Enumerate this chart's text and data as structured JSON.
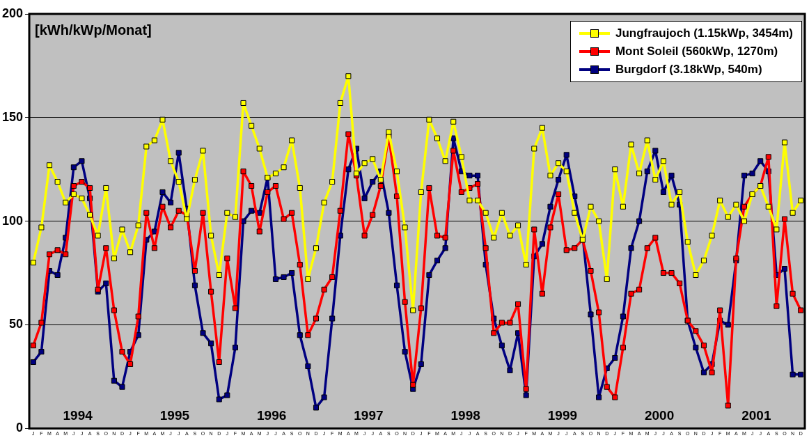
{
  "chart_data": {
    "type": "line",
    "ylabel": "[kWh/kWp/Monat]",
    "categories": [
      "J",
      "F",
      "M",
      "A",
      "M",
      "J",
      "J",
      "A",
      "S",
      "O",
      "N",
      "D",
      "J",
      "F",
      "M",
      "A",
      "M",
      "J",
      "J",
      "A",
      "S",
      "O",
      "N",
      "D",
      "J",
      "F",
      "M",
      "A",
      "M",
      "J",
      "J",
      "A",
      "S",
      "O",
      "N",
      "D",
      "J",
      "F",
      "M",
      "A",
      "M",
      "J",
      "J",
      "A",
      "S",
      "O",
      "N",
      "D",
      "J",
      "F",
      "M",
      "A",
      "M",
      "J",
      "J",
      "A",
      "S",
      "O",
      "N",
      "D",
      "J",
      "F",
      "M",
      "A",
      "M",
      "J",
      "J",
      "A",
      "S",
      "O",
      "N",
      "D",
      "J",
      "F",
      "M",
      "A",
      "M",
      "J",
      "J",
      "A",
      "S",
      "O",
      "N",
      "D",
      "J",
      "F",
      "M",
      "A",
      "M",
      "J",
      "J",
      "A",
      "S",
      "O",
      "N",
      "D"
    ],
    "series": [
      {
        "name": "Jungfraujoch (1.15kWp, 3454m)",
        "color": "#ffff00",
        "values": [
          80,
          97,
          127,
          119,
          109,
          113,
          111,
          103,
          93,
          116,
          82,
          96,
          85,
          98,
          136,
          139,
          149,
          129,
          119,
          101,
          120,
          134,
          93,
          74,
          104,
          102,
          157,
          146,
          135,
          121,
          123,
          126,
          139,
          116,
          72,
          87,
          109,
          119,
          157,
          170,
          123,
          128,
          130,
          120,
          143,
          124,
          97,
          57,
          114,
          149,
          140,
          129,
          148,
          131,
          110,
          110,
          104,
          92,
          104,
          93,
          98,
          79,
          135,
          145,
          122,
          128,
          124,
          104,
          91,
          107,
          100,
          72,
          125,
          107,
          137,
          123,
          139,
          120,
          129,
          108,
          114,
          90,
          74,
          81,
          93,
          110,
          102,
          108,
          100,
          113,
          117,
          107,
          96,
          138,
          104,
          110
        ]
      },
      {
        "name": "Mont Soleil (560kWp, 1270m)",
        "color": "#ff0000",
        "values": [
          40,
          51,
          84,
          86,
          84,
          117,
          119,
          116,
          67,
          87,
          57,
          37,
          31,
          54,
          104,
          87,
          107,
          97,
          105,
          103,
          76,
          104,
          66,
          32,
          82,
          58,
          124,
          117,
          95,
          114,
          117,
          101,
          104,
          79,
          45,
          53,
          67,
          73,
          105,
          142,
          122,
          93,
          103,
          117,
          141,
          112,
          61,
          21,
          58,
          116,
          93,
          92,
          134,
          114,
          116,
          118,
          87,
          46,
          51,
          51,
          60,
          19,
          96,
          65,
          97,
          113,
          86,
          87,
          91,
          76,
          56,
          20,
          15,
          39,
          65,
          67,
          87,
          92,
          75,
          75,
          70,
          52,
          47,
          40,
          27,
          57,
          11,
          82,
          107,
          113,
          117,
          131,
          59,
          101,
          65,
          57
        ]
      },
      {
        "name": "Burgdorf (3.18kWp, 540m)",
        "color": "#000080",
        "values": [
          32,
          37,
          76,
          74,
          92,
          126,
          129,
          111,
          66,
          70,
          23,
          20,
          37,
          45,
          91,
          95,
          114,
          109,
          133,
          106,
          69,
          46,
          41,
          14,
          16,
          39,
          100,
          105,
          104,
          121,
          72,
          73,
          75,
          45,
          30,
          10,
          15,
          53,
          93,
          125,
          135,
          111,
          119,
          124,
          104,
          69,
          37,
          19,
          31,
          74,
          81,
          87,
          140,
          124,
          122,
          122,
          79,
          53,
          40,
          28,
          46,
          16,
          83,
          89,
          107,
          120,
          132,
          112,
          93,
          55,
          15,
          29,
          34,
          54,
          87,
          100,
          124,
          134,
          114,
          122,
          108,
          52,
          39,
          27,
          31,
          52,
          50,
          81,
          122,
          123,
          129,
          124,
          74,
          77,
          26,
          26
        ]
      }
    ],
    "ylim": [
      0,
      200
    ],
    "yticks": [
      0,
      50,
      100,
      150,
      200
    ],
    "grid": "y",
    "legend": "top right",
    "marker": "square",
    "line_style": "solid",
    "annotations": [
      "1994",
      "1995",
      "1996",
      "1997",
      "1998",
      "1999",
      "2000",
      "2001"
    ]
  }
}
